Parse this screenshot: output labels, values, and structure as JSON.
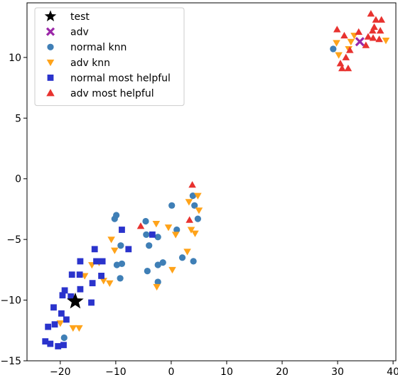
{
  "chart_data": {
    "type": "scatter",
    "title": "",
    "xlabel": "",
    "ylabel": "",
    "xlim": [
      -26,
      40.5
    ],
    "ylim": [
      -15,
      14.5
    ],
    "xticks": [
      -20,
      -10,
      0,
      10,
      20,
      30,
      40
    ],
    "yticks": [
      -15,
      -10,
      -5,
      0,
      5,
      10
    ],
    "grid": false,
    "legend_position": "upper-left",
    "series": [
      {
        "name": "test",
        "marker": "star",
        "color": "#000000",
        "points": [
          [
            -17.3,
            -10.1
          ]
        ]
      },
      {
        "name": "adv",
        "marker": "x",
        "color": "#9b27a8",
        "points": [
          [
            34.0,
            11.3
          ]
        ]
      },
      {
        "name": "normal knn",
        "marker": "circle",
        "color": "#3f7fb6",
        "points": [
          [
            -10.2,
            -3.3
          ],
          [
            -9.9,
            -3.0
          ],
          [
            -9.8,
            -7.1
          ],
          [
            -9.1,
            -5.5
          ],
          [
            -8.9,
            -7.0
          ],
          [
            -9.2,
            -8.2
          ],
          [
            -4.6,
            -3.5
          ],
          [
            -4.5,
            -4.6
          ],
          [
            -4.0,
            -5.5
          ],
          [
            -4.3,
            -7.6
          ],
          [
            -2.4,
            -4.8
          ],
          [
            -2.4,
            -7.1
          ],
          [
            -1.5,
            -6.9
          ],
          [
            -2.4,
            -8.5
          ],
          [
            0.1,
            -2.2
          ],
          [
            1.0,
            -4.2
          ],
          [
            2.0,
            -6.5
          ],
          [
            3.9,
            -1.4
          ],
          [
            4.2,
            -2.2
          ],
          [
            4.8,
            -3.3
          ],
          [
            4.0,
            -6.8
          ],
          [
            -19.3,
            -13.1
          ],
          [
            29.2,
            10.7
          ]
        ]
      },
      {
        "name": "adv knn",
        "marker": "triangle-down",
        "color": "#ffa31a",
        "points": [
          [
            -10.8,
            -5.0
          ],
          [
            -10.2,
            -5.9
          ],
          [
            -11.1,
            -8.6
          ],
          [
            -2.7,
            -3.7
          ],
          [
            -2.6,
            -8.9
          ],
          [
            -0.5,
            -4.0
          ],
          [
            0.8,
            -4.6
          ],
          [
            0.2,
            -7.5
          ],
          [
            3.2,
            -1.9
          ],
          [
            3.6,
            -4.2
          ],
          [
            4.3,
            -4.5
          ],
          [
            4.8,
            -1.4
          ],
          [
            5.0,
            -2.6
          ],
          [
            2.9,
            -6.0
          ],
          [
            -15.6,
            -8.0
          ],
          [
            -14.3,
            -7.1
          ],
          [
            -13.0,
            -6.9
          ],
          [
            -12.2,
            -8.4
          ],
          [
            -17.7,
            -12.3
          ],
          [
            -16.6,
            -12.3
          ],
          [
            -20.0,
            -11.9
          ],
          [
            30.2,
            10.2
          ],
          [
            32.0,
            10.7
          ],
          [
            32.4,
            11.3
          ],
          [
            33.0,
            11.8
          ],
          [
            38.7,
            11.4
          ],
          [
            29.8,
            11.2
          ]
        ]
      },
      {
        "name": "normal most helpful",
        "marker": "square",
        "color": "#2a33cc",
        "points": [
          [
            -22.7,
            -13.4
          ],
          [
            -21.8,
            -13.6
          ],
          [
            -20.4,
            -13.8
          ],
          [
            -19.4,
            -13.7
          ],
          [
            -22.2,
            -12.2
          ],
          [
            -21.0,
            -12.0
          ],
          [
            -19.8,
            -11.1
          ],
          [
            -18.9,
            -11.6
          ],
          [
            -21.2,
            -10.6
          ],
          [
            -19.6,
            -9.6
          ],
          [
            -19.2,
            -9.2
          ],
          [
            -18.1,
            -9.7
          ],
          [
            -17.9,
            -7.9
          ],
          [
            -16.4,
            -6.8
          ],
          [
            -16.4,
            -9.1
          ],
          [
            -16.5,
            -7.9
          ],
          [
            -14.4,
            -10.2
          ],
          [
            -14.2,
            -8.6
          ],
          [
            -13.8,
            -5.8
          ],
          [
            -13.5,
            -6.8
          ],
          [
            -12.4,
            -6.8
          ],
          [
            -12.6,
            -8.0
          ],
          [
            -8.9,
            -4.2
          ],
          [
            -7.7,
            -5.8
          ],
          [
            -3.4,
            -4.6
          ]
        ]
      },
      {
        "name": "adv most helpful",
        "marker": "triangle-up",
        "color": "#e8322f",
        "points": [
          [
            -5.5,
            -3.9
          ],
          [
            3.3,
            -3.4
          ],
          [
            3.8,
            -0.5
          ],
          [
            29.9,
            12.3
          ],
          [
            31.2,
            11.8
          ],
          [
            30.5,
            9.5
          ],
          [
            31.5,
            10.0
          ],
          [
            32.2,
            10.6
          ],
          [
            31.9,
            9.1
          ],
          [
            30.8,
            9.1
          ],
          [
            33.8,
            12.1
          ],
          [
            35.5,
            11.7
          ],
          [
            36.3,
            12.2
          ],
          [
            36.6,
            12.5
          ],
          [
            36.9,
            13.1
          ],
          [
            37.9,
            13.1
          ],
          [
            37.7,
            12.2
          ],
          [
            36.4,
            11.6
          ],
          [
            37.5,
            11.5
          ],
          [
            36.0,
            13.6
          ],
          [
            35.1,
            11.0
          ]
        ]
      }
    ]
  }
}
